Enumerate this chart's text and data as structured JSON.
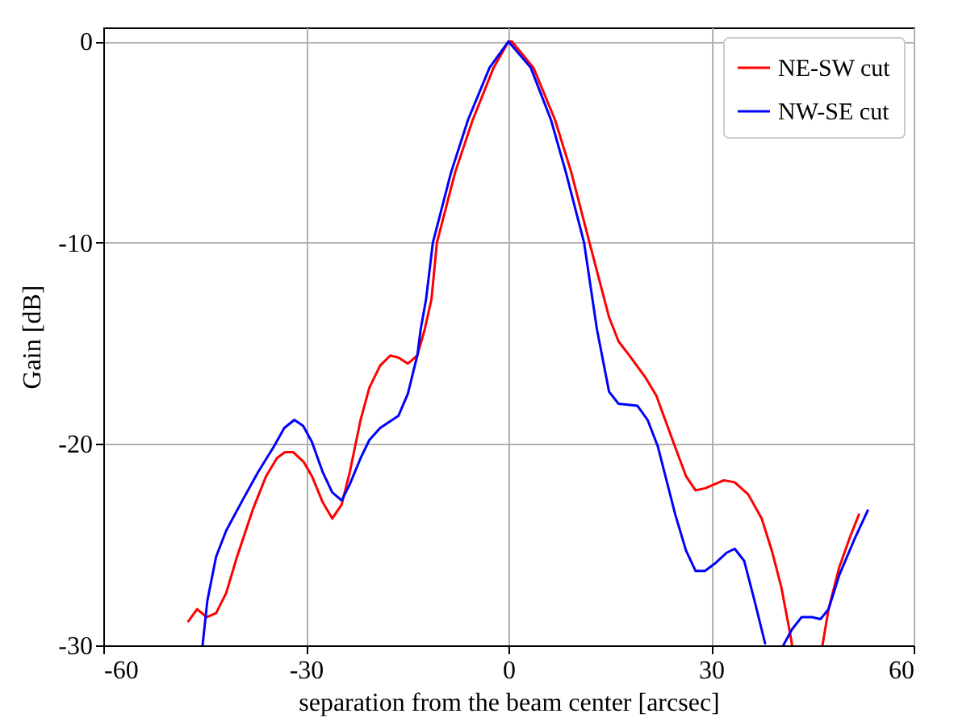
{
  "chart_data": {
    "type": "line",
    "xlabel": "separation from the beam center [arcsec]",
    "ylabel": "Gain [dB]",
    "xlim": [
      -60,
      60
    ],
    "xticks": [
      -60,
      -30,
      0,
      30,
      60
    ],
    "ylim": [
      -30,
      0.7
    ],
    "yticks": [
      -30,
      -20,
      -10,
      0
    ],
    "grid": true,
    "legend": "top right",
    "marker": "none",
    "line_style": "solid",
    "series": [
      {
        "name": "NE-SW cut",
        "color": "#ff0000",
        "x": [
          -47.4,
          -46.1,
          -44.7,
          -43.3,
          -41.8,
          -40.2,
          -37.8,
          -35.9,
          -34.3,
          -33.1,
          -31.9,
          -30.3,
          -29.1,
          -27.5,
          -26.1,
          -24.7,
          -23.5,
          -21.9,
          -20.6,
          -19.0,
          -17.5,
          -16.3,
          -14.9,
          -13.5,
          -12.4,
          -11.4,
          -10.6,
          -7.9,
          -5.3,
          -2.2,
          0,
          0.5,
          3.7,
          6.9,
          9.3,
          12.0,
          14.9,
          16.3,
          17.9,
          20.3,
          21.9,
          24.3,
          26.3,
          27.7,
          29.1,
          31.9,
          33.5,
          35.5,
          37.5,
          39.0,
          40.4,
          41.7,
          42.0,
          44.0,
          46.5,
          47.4,
          49.0,
          50.6,
          51.9
        ],
        "values": [
          -28.8,
          -28.2,
          -28.6,
          -28.4,
          -27.4,
          -25.6,
          -23.2,
          -21.6,
          -20.7,
          -20.4,
          -20.4,
          -20.9,
          -21.6,
          -22.9,
          -23.7,
          -23.0,
          -21.4,
          -18.8,
          -17.2,
          -16.1,
          -15.6,
          -15.7,
          -16.0,
          -15.6,
          -14.3,
          -12.8,
          -10,
          -6.5,
          -3.9,
          -1.3,
          0,
          0,
          -1.3,
          -3.9,
          -6.5,
          -10,
          -13.7,
          -14.9,
          -15.6,
          -16.7,
          -17.6,
          -19.8,
          -21.6,
          -22.3,
          -22.2,
          -21.8,
          -21.9,
          -22.5,
          -23.7,
          -25.3,
          -27.1,
          -29.4,
          -30,
          null,
          -30,
          -28.2,
          -26.1,
          -24.6,
          -23.5
        ]
      },
      {
        "name": "NW-SE cut",
        "color": "#0000ff",
        "x": [
          -45.3,
          -44.6,
          -43.3,
          -41.8,
          -39.4,
          -37.1,
          -34.7,
          -33.2,
          -31.7,
          -30.4,
          -29.1,
          -27.5,
          -26.1,
          -24.7,
          -23.5,
          -21.9,
          -20.6,
          -19.0,
          -16.3,
          -14.9,
          -13.5,
          -13.0,
          -12.2,
          -11.2,
          -8.5,
          -6.0,
          -2.8,
          0,
          3.3,
          6.3,
          8.5,
          11.2,
          13.1,
          14.9,
          16.3,
          19.1,
          20.6,
          22.1,
          24.7,
          26.3,
          27.7,
          29.1,
          30.7,
          32.3,
          33.5,
          34.9,
          36.3,
          38.0,
          39.3,
          40.7,
          42.0,
          43.4,
          44.9,
          46.2,
          47.4,
          49.0,
          51.4,
          53.2
        ],
        "values": [
          -30,
          -27.8,
          -25.6,
          -24.3,
          -22.8,
          -21.4,
          -20.1,
          -19.2,
          -18.8,
          -19.1,
          -19.9,
          -21.4,
          -22.4,
          -22.8,
          -22.0,
          -20.7,
          -19.8,
          -19.2,
          -18.6,
          -17.5,
          -15.6,
          -14.3,
          -12.8,
          -10,
          -6.5,
          -3.9,
          -1.3,
          0,
          -1.3,
          -3.9,
          -6.5,
          -10,
          -14.3,
          -17.4,
          -18.0,
          -18.1,
          -18.8,
          -20.1,
          -23.5,
          -25.3,
          -26.3,
          -26.3,
          -25.9,
          -25.4,
          -25.2,
          -25.8,
          -27.6,
          -29.9,
          null,
          -30,
          -29.2,
          -28.6,
          -28.6,
          -28.7,
          -28.2,
          -26.5,
          -24.6,
          -23.3
        ]
      }
    ]
  }
}
